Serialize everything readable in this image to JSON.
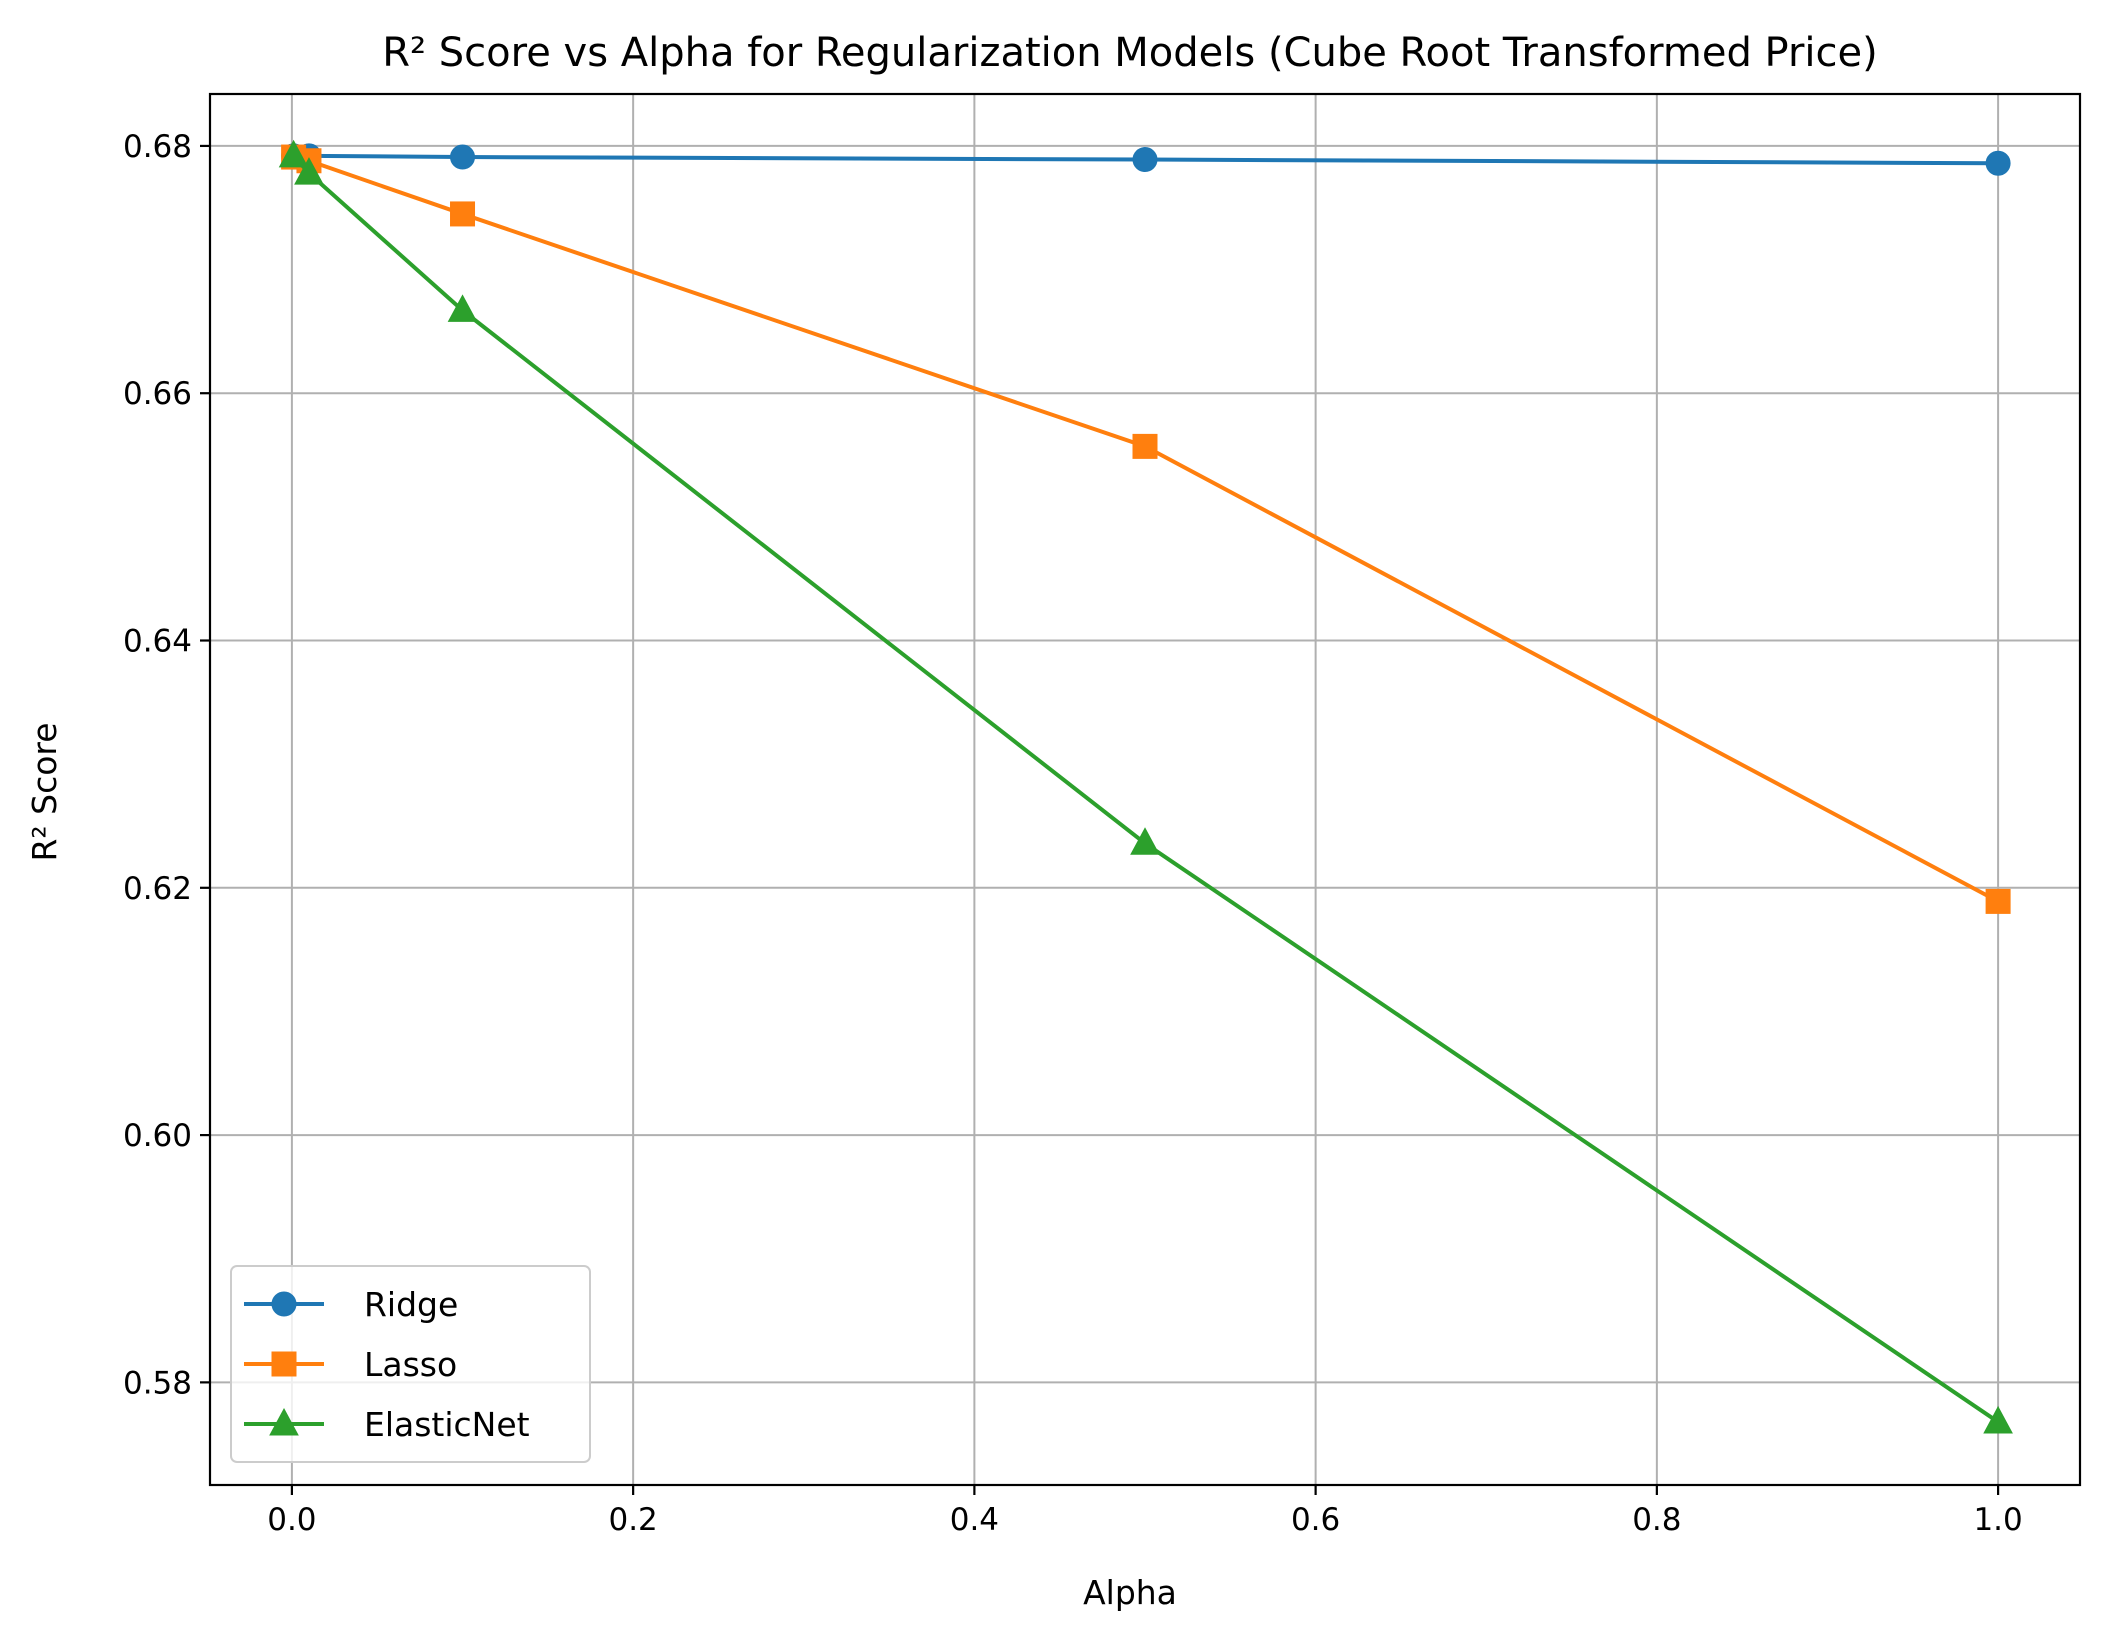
{
  "chart_data": {
    "type": "line",
    "title": "R² Score vs Alpha for Regularization Models (Cube Root Transformed Price)",
    "xlabel": "Alpha",
    "ylabel": "R² Score",
    "xlim": [
      -0.048,
      1.048
    ],
    "ylim": [
      0.5717,
      0.6842
    ],
    "xticks": [
      0.0,
      0.2,
      0.4,
      0.6,
      0.8,
      1.0
    ],
    "xtick_labels": [
      "0.0",
      "0.2",
      "0.4",
      "0.6",
      "0.8",
      "1.0"
    ],
    "yticks": [
      0.58,
      0.6,
      0.62,
      0.64,
      0.66,
      0.68
    ],
    "ytick_labels": [
      "0.58",
      "0.60",
      "0.62",
      "0.64",
      "0.66",
      "0.68"
    ],
    "grid": true,
    "legend_position": "lower-left",
    "series": [
      {
        "name": "Ridge",
        "color": "#1f77b4",
        "marker": "circle",
        "x": [
          0.001,
          0.01,
          0.1,
          0.5,
          1.0
        ],
        "y": [
          0.6792,
          0.6792,
          0.6791,
          0.6789,
          0.6786
        ]
      },
      {
        "name": "Lasso",
        "color": "#ff7f0e",
        "marker": "square",
        "x": [
          0.001,
          0.01,
          0.1,
          0.5,
          1.0
        ],
        "y": [
          0.6791,
          0.6788,
          0.6745,
          0.6557,
          0.6189
        ]
      },
      {
        "name": "ElasticNet",
        "color": "#2ca02c",
        "marker": "triangle",
        "x": [
          0.001,
          0.01,
          0.1,
          0.5,
          1.0
        ],
        "y": [
          0.6792,
          0.6778,
          0.6667,
          0.6236,
          0.5768
        ]
      }
    ]
  }
}
